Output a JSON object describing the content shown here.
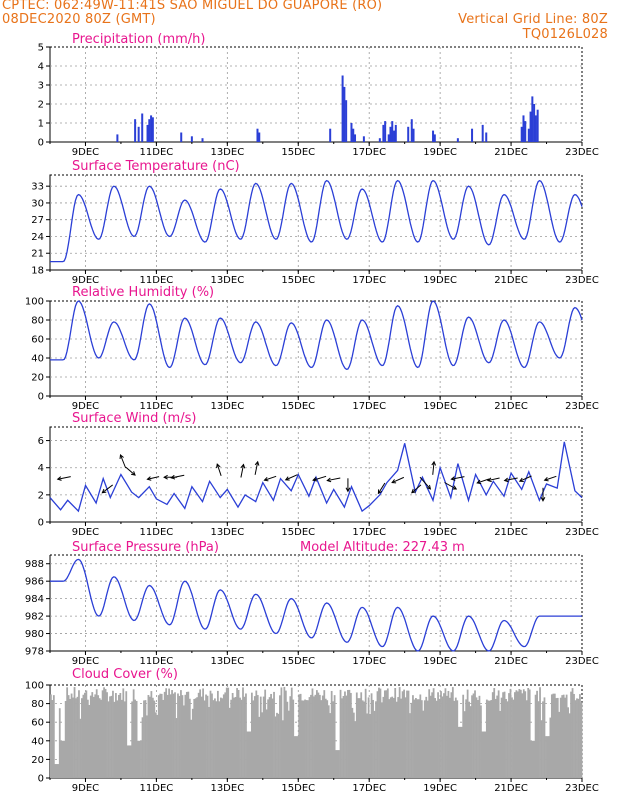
{
  "header": {
    "line1": "CPTEC:   062:49W-11:41S   SAO MIGUEL DO GUAPORE (RO)",
    "line2_left": "08DEC2020 80Z (GMT)",
    "line2_right": "Vertical Grid Line: 80Z",
    "line3_right": "TQ0126L028"
  },
  "colors": {
    "header": "#e8731a",
    "title": "#e8168f",
    "series": "#2b3fd6",
    "cloud": "#a8a8a8",
    "grid": "#9a9a9a"
  },
  "x_axis_labels": [
    "9DEC",
    "11DEC",
    "13DEC",
    "15DEC",
    "17DEC",
    "19DEC",
    "21DEC",
    "23DEC"
  ],
  "chart_data": [
    {
      "type": "bar",
      "title": "Precipitation (mm/h)",
      "ylim": [
        0,
        5
      ],
      "yticks": [
        0,
        1,
        2,
        3,
        4,
        5
      ],
      "x_start": 8,
      "x_end": 23,
      "grid": "dotted",
      "series": [
        {
          "x": [
            9.9,
            10.4,
            10.5,
            10.6,
            10.75,
            10.8,
            10.85,
            10.9,
            11.7,
            12.0,
            12.3,
            13.85,
            13.9,
            15.9,
            16.25,
            16.3,
            16.35,
            16.5,
            16.55,
            16.6,
            16.85,
            17.3,
            17.4,
            17.45,
            17.55,
            17.6,
            17.65,
            17.7,
            17.75,
            18.1,
            18.2,
            18.25,
            18.8,
            18.85,
            19.5,
            19.9,
            20.2,
            20.3,
            21.3,
            21.35,
            21.4,
            21.5,
            21.55,
            21.6,
            21.65,
            21.7,
            21.75
          ],
          "values": [
            0.4,
            1.2,
            0.8,
            1.5,
            0.9,
            1.2,
            1.4,
            1.3,
            0.5,
            0.3,
            0.2,
            0.7,
            0.5,
            0.7,
            3.5,
            2.9,
            2.2,
            1.0,
            0.7,
            0.4,
            0.3,
            0.2,
            0.9,
            1.1,
            0.4,
            0.8,
            1.1,
            0.6,
            0.9,
            0.8,
            1.2,
            0.7,
            0.6,
            0.4,
            0.2,
            0.7,
            0.9,
            0.5,
            0.8,
            1.4,
            1.1,
            0.7,
            1.6,
            2.4,
            2.0,
            1.4,
            1.7
          ]
        }
      ]
    },
    {
      "type": "line",
      "title": "Surface Temperature (nC)",
      "ylim": [
        18,
        35
      ],
      "yticks": [
        18,
        21,
        24,
        27,
        30,
        33
      ],
      "x_start": 8,
      "x_end": 23,
      "grid": "dotted",
      "series": [
        {
          "peaks": [
            31.5,
            33,
            33,
            30.5,
            32.5,
            33.5,
            33.5,
            34,
            32.5,
            34,
            34,
            33,
            31.5,
            34,
            31.5
          ],
          "troughs": [
            19.5,
            23.5,
            24,
            24,
            23,
            23.5,
            23.5,
            23,
            23.5,
            23,
            23,
            23.5,
            22.5,
            23.5,
            23,
            23.5
          ]
        }
      ]
    },
    {
      "type": "line",
      "title": "Relative Humidity (%)",
      "ylim": [
        0,
        100
      ],
      "yticks": [
        0,
        20,
        40,
        60,
        80,
        100
      ],
      "x_start": 8,
      "x_end": 23,
      "grid": "dotted",
      "series": [
        {
          "peaks": [
            100,
            78,
            97,
            82,
            82,
            78,
            77,
            80,
            80,
            95,
            100,
            83,
            80,
            78,
            93
          ],
          "troughs": [
            38,
            40,
            38,
            30,
            33,
            35,
            32,
            30,
            28,
            32,
            30,
            32,
            35,
            30,
            40,
            45
          ]
        }
      ]
    },
    {
      "type": "line",
      "title": "Surface Wind (m/s)",
      "ylim": [
        0,
        7
      ],
      "yticks": [
        0,
        2,
        4,
        6
      ],
      "x_start": 8,
      "x_end": 23,
      "grid": "dotted",
      "series": [
        {
          "x": [
            8.0,
            8.3,
            8.5,
            8.8,
            9.0,
            9.3,
            9.5,
            9.7,
            10.0,
            10.3,
            10.5,
            10.8,
            11.0,
            11.3,
            11.5,
            11.8,
            12.0,
            12.3,
            12.5,
            12.8,
            13.0,
            13.3,
            13.5,
            13.8,
            14.0,
            14.3,
            14.5,
            14.8,
            15.0,
            15.3,
            15.5,
            15.8,
            16.0,
            16.3,
            16.5,
            16.8,
            17.0,
            17.3,
            17.5,
            17.8,
            18.0,
            18.3,
            18.5,
            18.8,
            19.0,
            19.3,
            19.5,
            19.8,
            20.0,
            20.3,
            20.5,
            20.8,
            21.0,
            21.3,
            21.5,
            21.8,
            22.0,
            22.3,
            22.5,
            22.8,
            23.0
          ],
          "values": [
            1.8,
            0.9,
            1.6,
            0.8,
            2.7,
            1.4,
            3.2,
            1.8,
            3.5,
            2.2,
            1.8,
            2.6,
            1.7,
            1.3,
            2.1,
            1.0,
            2.6,
            1.5,
            3.0,
            1.8,
            2.4,
            1.1,
            2.0,
            1.5,
            2.9,
            1.6,
            3.2,
            2.3,
            3.5,
            1.9,
            3.3,
            1.4,
            2.4,
            1.1,
            2.6,
            0.8,
            1.2,
            2.0,
            2.9,
            3.8,
            5.8,
            2.2,
            3.3,
            1.6,
            4.0,
            1.8,
            4.3,
            1.6,
            3.5,
            2.0,
            3.0,
            1.9,
            3.6,
            2.4,
            3.7,
            1.6,
            2.8,
            2.5,
            5.9,
            2.3,
            1.8
          ]
        }
      ]
    },
    {
      "type": "line",
      "title": "Surface Pressure (hPa)",
      "annotation": "Model Altitude: 227.43 m",
      "ylim": [
        978,
        989
      ],
      "yticks": [
        978,
        980,
        982,
        984,
        986,
        988
      ],
      "x_start": 8,
      "x_end": 23,
      "grid": "dotted",
      "series": [
        {
          "peaks": [
            988.5,
            986.5,
            985.5,
            986,
            985,
            984.5,
            984,
            983.5,
            983,
            983,
            982,
            982,
            981.5,
            982
          ],
          "troughs": [
            986,
            982,
            981.5,
            981,
            980.5,
            980.5,
            980,
            979.5,
            979,
            978.5,
            978,
            978,
            978,
            978.5
          ]
        }
      ]
    },
    {
      "type": "bar",
      "title": "Cloud Cover (%)",
      "ylim": [
        0,
        100
      ],
      "yticks": [
        0,
        20,
        40,
        60,
        80,
        100
      ],
      "x_start": 8,
      "x_end": 23,
      "grid": "dotted",
      "series": [
        {
          "level": 90
        }
      ]
    }
  ]
}
